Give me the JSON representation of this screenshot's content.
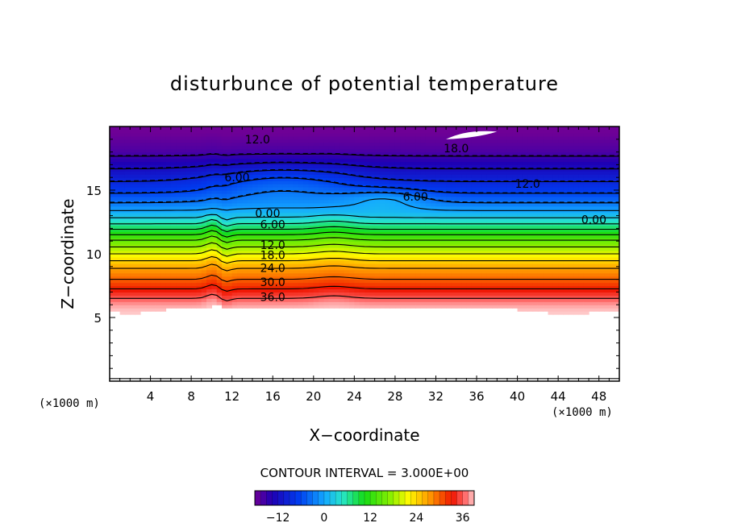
{
  "chart_data": {
    "type": "contour",
    "title": "disturbunce of potential temperature",
    "xlabel": "X−coordinate",
    "ylabel": "Z−coordinate",
    "x_unit_left": "(×1000 m)",
    "x_unit_right": "(×1000 m)",
    "xlim": [
      0,
      50
    ],
    "ylim": [
      0,
      20
    ],
    "x_ticks": [
      4,
      8,
      12,
      16,
      20,
      24,
      28,
      32,
      36,
      40,
      44,
      48
    ],
    "x_tick_labels": [
      "4",
      "8",
      "12",
      "16",
      "20",
      "24",
      "28",
      "32",
      "36",
      "40",
      "44",
      "48"
    ],
    "y_ticks": [
      5,
      10,
      15
    ],
    "y_tick_labels": [
      "5",
      "10",
      "15"
    ],
    "contour_interval_text": "CONTOUR INTERVAL = 3.000E+00",
    "contour_interval": 3.0,
    "colorbar": {
      "vmin": -18,
      "vmax": 39,
      "ticks": [
        -12,
        0,
        12,
        24,
        36
      ],
      "tick_labels": [
        "−12",
        "0",
        "12",
        "24",
        "36"
      ]
    },
    "contour_labels": [
      {
        "text": "12.0",
        "x": 14.5,
        "z": 19.0
      },
      {
        "text": "18.0",
        "x": 34.0,
        "z": 18.3
      },
      {
        "text": "6.00",
        "x": 12.5,
        "z": 16.0
      },
      {
        "text": "12.0",
        "x": 41.0,
        "z": 15.5
      },
      {
        "text": "6.00",
        "x": 30.0,
        "z": 14.5
      },
      {
        "text": "0.00",
        "x": 15.5,
        "z": 13.2
      },
      {
        "text": "0.00",
        "x": 47.5,
        "z": 12.7
      },
      {
        "text": "6.00",
        "x": 16.0,
        "z": 12.3
      },
      {
        "text": "12.0",
        "x": 16.0,
        "z": 10.7
      },
      {
        "text": "18.0",
        "x": 16.0,
        "z": 9.9
      },
      {
        "text": "24.0",
        "x": 16.0,
        "z": 8.9
      },
      {
        "text": "30.0",
        "x": 16.0,
        "z": 7.8
      },
      {
        "text": "36.0",
        "x": 16.0,
        "z": 6.6
      }
    ],
    "field_profile": {
      "z": [
        5.5,
        6.0,
        7.0,
        8.0,
        9.0,
        10.0,
        11.0,
        12.0,
        12.5,
        13.0,
        14.0,
        15.0,
        16.0,
        17.0,
        18.0,
        19.5
      ],
      "theta": [
        39,
        38,
        34,
        30,
        26.5,
        21,
        15.5,
        8.5,
        5,
        2,
        -3,
        -7,
        -10,
        -13,
        -16,
        -18
      ]
    },
    "lower_boundary_z": 5.9
  }
}
